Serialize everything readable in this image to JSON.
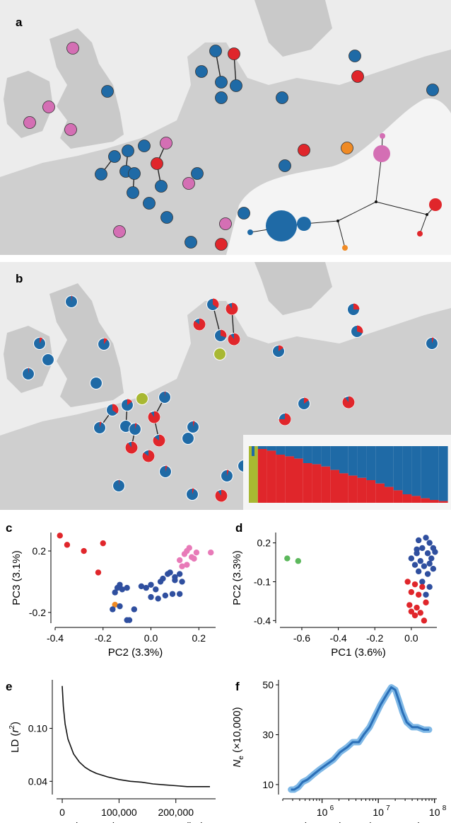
{
  "panels": {
    "a": {
      "letter": "a"
    },
    "b": {
      "letter": "b"
    },
    "c": {
      "letter": "c"
    },
    "d": {
      "letter": "d"
    },
    "e": {
      "letter": "e"
    },
    "f": {
      "letter": "f"
    }
  },
  "colors": {
    "blue": "#1f6aa6",
    "blue_dark": "#2f4f9f",
    "red": "#e0262b",
    "pink": "#d46fb4",
    "orange": "#f08a24",
    "olive": "#a8b832",
    "green": "#5cb85c",
    "map_bg": "#d8d8d8",
    "land": "#c6c6c6",
    "sea": "#ececec",
    "pink_scatter": "#e87ab8"
  },
  "chart_data": [
    {
      "id": "c",
      "type": "scatter",
      "xlabel": "PC2 (3.3%)",
      "ylabel": "PC3 (3.1%)",
      "xlim": [
        -0.4,
        0.27
      ],
      "ylim": [
        -0.27,
        0.32
      ],
      "xticks": [
        "-0.4",
        "-0.2",
        "0.0",
        "0.2"
      ],
      "xtick_values": [
        -0.4,
        -0.2,
        0.0,
        0.2
      ],
      "yticks": [
        "0.2",
        "-0.2"
      ],
      "ytick_values": [
        0.2,
        -0.2
      ],
      "series": [
        {
          "color": "red",
          "points": [
            [
              -0.38,
              0.3
            ],
            [
              -0.35,
              0.24
            ],
            [
              -0.28,
              0.2
            ],
            [
              -0.2,
              0.25
            ],
            [
              -0.22,
              0.06
            ]
          ]
        },
        {
          "color": "orange",
          "points": [
            [
              -0.15,
              -0.15
            ]
          ]
        },
        {
          "color": "blue_dark",
          "points": [
            [
              -0.15,
              -0.07
            ],
            [
              -0.13,
              -0.02
            ],
            [
              -0.12,
              -0.05
            ],
            [
              -0.14,
              -0.04
            ],
            [
              -0.1,
              -0.04
            ],
            [
              -0.13,
              -0.16
            ],
            [
              -0.16,
              -0.18
            ],
            [
              -0.07,
              -0.18
            ],
            [
              -0.1,
              -0.25
            ],
            [
              -0.09,
              -0.25
            ],
            [
              -0.04,
              -0.03
            ],
            [
              -0.02,
              -0.04
            ],
            [
              0.0,
              -0.02
            ],
            [
              0.02,
              -0.05
            ],
            [
              0.04,
              0.0
            ],
            [
              0.05,
              0.02
            ],
            [
              0.07,
              0.05
            ],
            [
              0.08,
              0.06
            ],
            [
              0.1,
              0.03
            ],
            [
              0.12,
              0.05
            ],
            [
              0.0,
              -0.1
            ],
            [
              0.03,
              -0.11
            ],
            [
              0.06,
              -0.09
            ],
            [
              0.09,
              -0.08
            ],
            [
              0.12,
              -0.08
            ],
            [
              0.1,
              0.01
            ],
            [
              0.13,
              0.0
            ]
          ]
        },
        {
          "color": "pink_scatter",
          "points": [
            [
              0.12,
              0.14
            ],
            [
              0.14,
              0.18
            ],
            [
              0.15,
              0.2
            ],
            [
              0.16,
              0.22
            ],
            [
              0.17,
              0.16
            ],
            [
              0.18,
              0.15
            ],
            [
              0.15,
              0.11
            ],
            [
              0.19,
              0.19
            ],
            [
              0.13,
              0.1
            ],
            [
              0.25,
              0.19
            ]
          ]
        }
      ]
    },
    {
      "id": "d",
      "type": "scatter",
      "xlabel": "PC1 (3.6%)",
      "ylabel": "PC2 (3.3%)",
      "xlim": [
        -0.72,
        0.14
      ],
      "ylim": [
        -0.42,
        0.28
      ],
      "xticks": [
        "-0.6",
        "-0.4",
        "-0.2",
        "0.0"
      ],
      "xtick_values": [
        -0.6,
        -0.4,
        -0.2,
        0.0
      ],
      "yticks": [
        "0.2",
        "-0.1",
        "-0.4"
      ],
      "ytick_values": [
        0.2,
        -0.1,
        -0.4
      ],
      "series": [
        {
          "color": "green",
          "points": [
            [
              -0.68,
              0.08
            ],
            [
              -0.62,
              0.06
            ]
          ]
        },
        {
          "color": "blue_dark",
          "points": [
            [
              0.04,
              0.22
            ],
            [
              0.08,
              0.24
            ],
            [
              0.1,
              0.2
            ],
            [
              0.12,
              0.16
            ],
            [
              0.06,
              0.16
            ],
            [
              0.03,
              0.12
            ],
            [
              0.09,
              0.12
            ],
            [
              0.0,
              0.08
            ],
            [
              0.05,
              0.06
            ],
            [
              0.11,
              0.08
            ],
            [
              0.02,
              0.03
            ],
            [
              0.07,
              0.02
            ],
            [
              0.1,
              0.04
            ],
            [
              0.04,
              -0.02
            ],
            [
              0.09,
              -0.04
            ],
            [
              0.12,
              0.0
            ],
            [
              0.06,
              -0.1
            ],
            [
              0.1,
              -0.14
            ],
            [
              0.08,
              -0.2
            ],
            [
              0.03,
              0.15
            ],
            [
              0.13,
              0.13
            ]
          ]
        },
        {
          "color": "red",
          "points": [
            [
              -0.02,
              -0.1
            ],
            [
              0.02,
              -0.12
            ],
            [
              0.06,
              -0.14
            ],
            [
              0.0,
              -0.18
            ],
            [
              0.04,
              -0.2
            ],
            [
              -0.01,
              -0.28
            ],
            [
              0.03,
              -0.3
            ],
            [
              0.05,
              -0.34
            ],
            [
              0.02,
              -0.36
            ],
            [
              0.07,
              -0.4
            ],
            [
              0.0,
              -0.33
            ],
            [
              0.08,
              -0.26
            ]
          ]
        }
      ]
    },
    {
      "id": "e",
      "type": "line",
      "xlabel": "Distance between SNPs (bp)",
      "ylabel": "LD (r²)",
      "ylabel_main": "LD (",
      "ylabel_sym": "r",
      "ylabel_sup": "2",
      "ylabel_tail": ")",
      "xlim": [
        -10000,
        270000
      ],
      "ylim": [
        0.025,
        0.155
      ],
      "xticks": [
        "0",
        "100,000",
        "200,000"
      ],
      "xtick_values": [
        0,
        100000,
        200000
      ],
      "yticks": [
        "0.10",
        "0.04"
      ],
      "ytick_values": [
        0.1,
        0.04
      ],
      "x": [
        0,
        2000,
        5000,
        10000,
        20000,
        30000,
        40000,
        50000,
        60000,
        80000,
        100000,
        120000,
        140000,
        160000,
        180000,
        200000,
        220000,
        240000,
        260000
      ],
      "y": [
        0.148,
        0.125,
        0.105,
        0.088,
        0.071,
        0.062,
        0.056,
        0.052,
        0.049,
        0.045,
        0.042,
        0.04,
        0.039,
        0.037,
        0.036,
        0.035,
        0.034,
        0.034,
        0.034
      ]
    },
    {
      "id": "f",
      "type": "line",
      "xlabel": "Time estimate (years ago)",
      "ylabel": "Ne (×10,000)",
      "ylabel_sym": "N",
      "ylabel_sub": "e",
      "ylabel_tail": " (×10,000)",
      "log_x": true,
      "xlim": [
        200000,
        110000000
      ],
      "ylim": [
        6,
        52
      ],
      "xticks": [
        "10",
        "10",
        "10"
      ],
      "xtick_exps": [
        "6",
        "7",
        "8"
      ],
      "xtick_values": [
        1000000,
        10000000,
        100000000
      ],
      "yticks": [
        "50",
        "30",
        "10"
      ],
      "ytick_values": [
        50,
        30,
        10
      ],
      "x": [
        280000,
        320000,
        380000,
        450000,
        550000,
        700000,
        900000,
        1200000,
        1600000,
        2100000,
        2800000,
        3500000,
        4500000,
        5500000,
        7000000,
        9000000,
        11000000,
        14000000,
        17000000,
        20000000,
        23000000,
        27000000,
        32000000,
        40000000,
        50000000,
        65000000,
        80000000
      ],
      "y": [
        8,
        8,
        9,
        11,
        12,
        14,
        16,
        18,
        20,
        23,
        25,
        27,
        27,
        30,
        33,
        38,
        42,
        46,
        49,
        48,
        44,
        39,
        35,
        33,
        33,
        32,
        32
      ]
    }
  ]
}
